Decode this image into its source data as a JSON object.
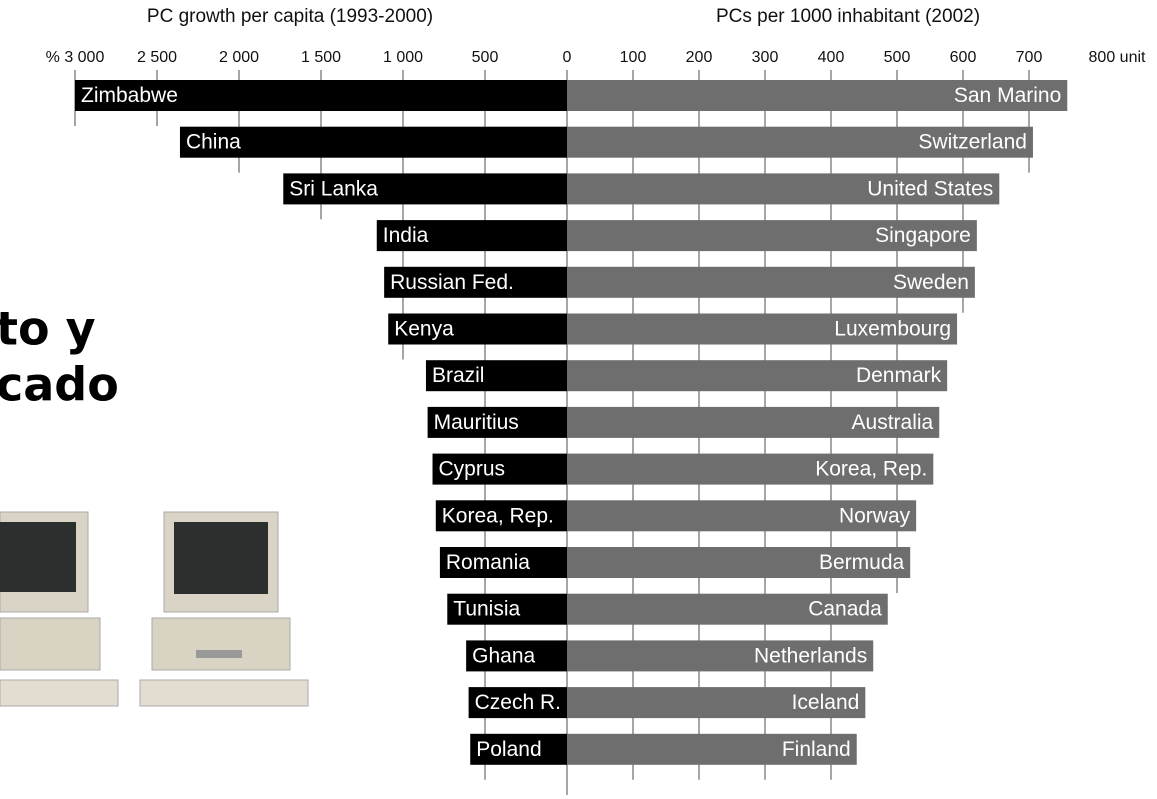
{
  "slide_text": [
    "to y",
    "cado"
  ],
  "chart_data": {
    "type": "butterfly",
    "grid": true,
    "panels": [
      {
        "title": "PC growth per capita (1993-2000)",
        "color": "#000000",
        "categories": [
          "Zimbabwe",
          "China",
          "Sri Lanka",
          "India",
          "Russian Fed.",
          "Kenya",
          "Brazil",
          "Mauritius",
          "Cyprus",
          "Korea, Rep.",
          "Romania",
          "Tunisia",
          "Ghana",
          "Czech R.",
          "Poland"
        ],
        "values": [
          3000,
          2360,
          1730,
          1160,
          1115,
          1090,
          860,
          850,
          820,
          800,
          775,
          730,
          615,
          600,
          590
        ],
        "xlim": [
          0,
          3000
        ],
        "xticks": [
          {
            "value": 3000,
            "label": "% 3 000"
          },
          {
            "value": 2500,
            "label": "2 500"
          },
          {
            "value": 2000,
            "label": "2 000"
          },
          {
            "value": 1500,
            "label": "1 500"
          },
          {
            "value": 1000,
            "label": "1 000"
          },
          500,
          0
        ]
      },
      {
        "title": "PCs per 1000 inhabitant (2002)",
        "color": "#6e6e6e",
        "categories": [
          "San Marino",
          "Switzerland",
          "United States",
          "Singapore",
          "Sweden",
          "Luxembourg",
          "Denmark",
          "Australia",
          "Korea, Rep.",
          "Norway",
          "Bermuda",
          "Canada",
          "Netherlands",
          "Iceland",
          "Finland"
        ],
        "values": [
          758,
          706,
          655,
          621,
          618,
          591,
          576,
          564,
          555,
          529,
          520,
          486,
          464,
          452,
          439
        ],
        "xlim": [
          0,
          800
        ],
        "xticks": [
          100,
          200,
          300,
          400,
          500,
          600,
          700,
          {
            "value": 800,
            "label": "800 unit"
          }
        ]
      }
    ]
  }
}
